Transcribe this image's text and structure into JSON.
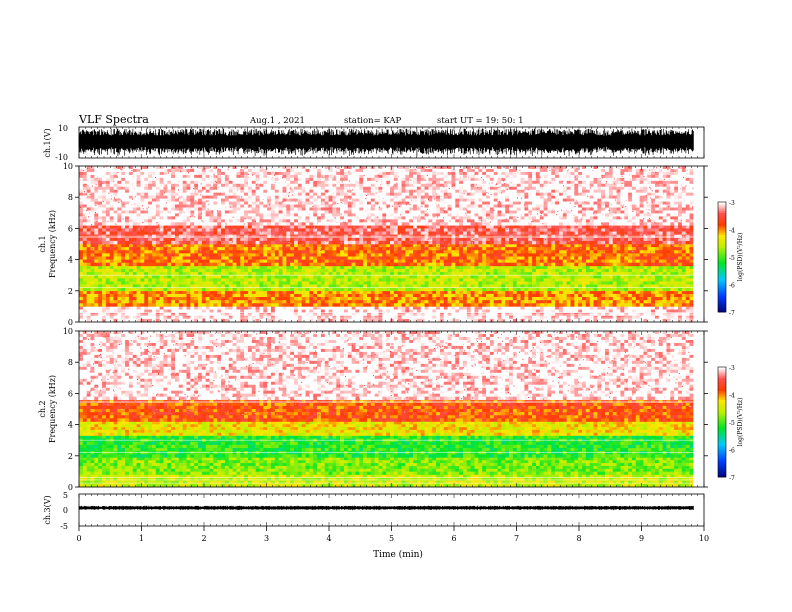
{
  "header": {
    "title": "VLF Spectra",
    "date": "Aug.1 , 2021",
    "station": "station= KAP",
    "start_ut": "start UT = 19: 50: 1"
  },
  "chart_data": [
    {
      "type": "line",
      "panel": "ch1_waveform",
      "ylabel": "ch.1(V)",
      "ylim": [
        -10,
        10
      ],
      "yticks": [
        "10",
        "-10"
      ],
      "xlim": [
        0,
        10
      ],
      "color": "#000000"
    },
    {
      "type": "heatmap",
      "panel": "ch1_spectrogram",
      "ylabel": "ch.1 Frequency (kHz)",
      "xlim": [
        0,
        9.83
      ],
      "ylim": [
        0,
        10
      ],
      "yticks": [
        "0",
        "2",
        "4",
        "6",
        "8",
        "10"
      ],
      "colorbar": {
        "label": "log(PSD)(V²/Hz)",
        "range": [
          -7,
          -3
        ],
        "ticks": [
          "-3",
          "-4",
          "-5",
          "-6",
          "-7"
        ]
      },
      "bands": [
        {
          "from_khz": 0.0,
          "to_khz": 1.0,
          "level": -3.0
        },
        {
          "from_khz": 1.0,
          "to_khz": 2.0,
          "level": -4.0
        },
        {
          "from_khz": 2.0,
          "to_khz": 3.6,
          "level": -4.6
        },
        {
          "from_khz": 3.6,
          "to_khz": 5.0,
          "level": -3.9
        },
        {
          "from_khz": 5.0,
          "to_khz": 6.2,
          "level": -3.4
        },
        {
          "from_khz": 6.2,
          "to_khz": 10.0,
          "level": -3.0
        }
      ]
    },
    {
      "type": "heatmap",
      "panel": "ch2_spectrogram",
      "ylabel": "ch.2 Frequency (kHz)",
      "xlim": [
        0,
        9.83
      ],
      "ylim": [
        0,
        10
      ],
      "yticks": [
        "0",
        "2",
        "4",
        "6",
        "8",
        "10"
      ],
      "colorbar": {
        "label": "log(PSD)(V²/Hz)",
        "range": [
          -7,
          -3
        ],
        "ticks": [
          "-3",
          "-4",
          "-5",
          "-6",
          "-7"
        ]
      },
      "bands": [
        {
          "from_khz": 0.0,
          "to_khz": 0.8,
          "level": -4.5
        },
        {
          "from_khz": 0.8,
          "to_khz": 1.9,
          "level": -4.8
        },
        {
          "from_khz": 1.9,
          "to_khz": 3.3,
          "level": -5.1
        },
        {
          "from_khz": 3.3,
          "to_khz": 4.2,
          "level": -4.3
        },
        {
          "from_khz": 4.2,
          "to_khz": 5.6,
          "level": -3.8
        },
        {
          "from_khz": 5.6,
          "to_khz": 10.0,
          "level": -3.0
        }
      ]
    },
    {
      "type": "line",
      "panel": "ch3_waveform",
      "ylabel": "ch.3(V)",
      "xlabel": "Time (min)",
      "ylim": [
        -5,
        5
      ],
      "yticks": [
        "5",
        "0",
        "-5"
      ],
      "xlim": [
        0,
        10
      ],
      "xticks": [
        "0",
        "1",
        "2",
        "3",
        "4",
        "5",
        "6",
        "7",
        "8",
        "9",
        "10"
      ],
      "color": "#000000"
    }
  ]
}
